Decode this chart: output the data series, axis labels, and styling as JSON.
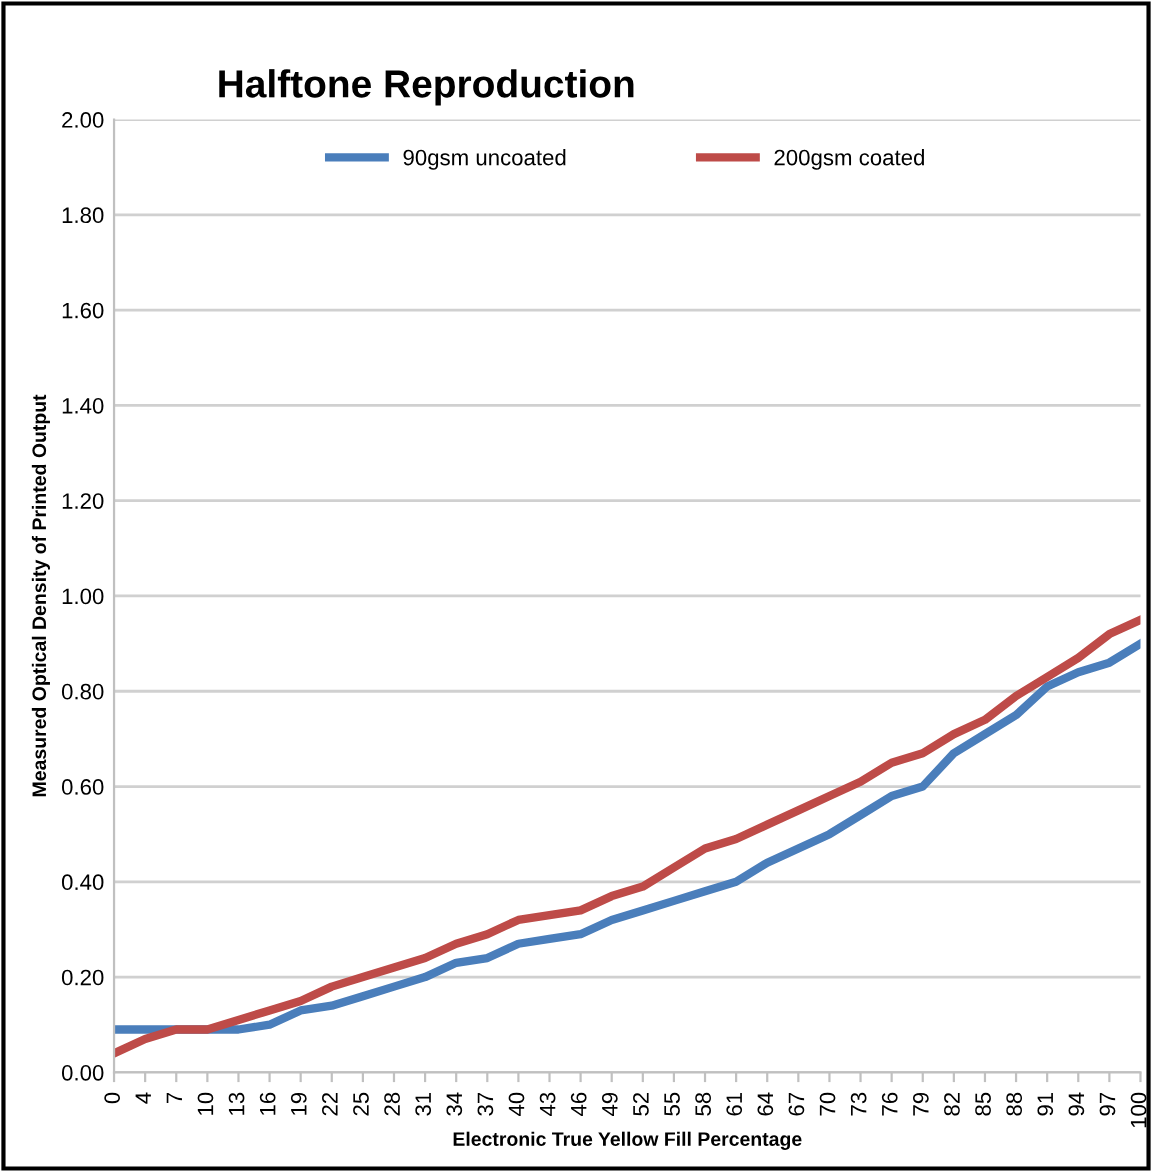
{
  "chart_data": {
    "type": "line",
    "title": "Halftone Reproduction",
    "xlabel": "Electronic True Yellow Fill Percentage",
    "ylabel": "Measured Optical Density of Printed Output",
    "categories": [
      "0",
      "4",
      "7",
      "10",
      "13",
      "16",
      "19",
      "22",
      "25",
      "28",
      "31",
      "34",
      "37",
      "40",
      "43",
      "46",
      "49",
      "52",
      "55",
      "58",
      "61",
      "64",
      "67",
      "70",
      "73",
      "76",
      "79",
      "82",
      "85",
      "88",
      "91",
      "94",
      "97",
      "100"
    ],
    "series": [
      {
        "name": "90gsm uncoated",
        "color": "#4a7ebb",
        "values": [
          0.09,
          0.09,
          0.09,
          0.09,
          0.09,
          0.1,
          0.13,
          0.14,
          0.16,
          0.18,
          0.2,
          0.23,
          0.24,
          0.27,
          0.28,
          0.29,
          0.32,
          0.34,
          0.36,
          0.38,
          0.4,
          0.44,
          0.47,
          0.5,
          0.54,
          0.58,
          0.6,
          0.67,
          0.71,
          0.75,
          0.81,
          0.84,
          0.86,
          0.9
        ]
      },
      {
        "name": "200gsm coated",
        "color": "#be4b48",
        "values": [
          0.04,
          0.07,
          0.09,
          0.09,
          0.11,
          0.13,
          0.15,
          0.18,
          0.2,
          0.22,
          0.24,
          0.27,
          0.29,
          0.32,
          0.33,
          0.34,
          0.37,
          0.39,
          0.43,
          0.47,
          0.49,
          0.52,
          0.55,
          0.58,
          0.61,
          0.65,
          0.67,
          0.71,
          0.74,
          0.79,
          0.83,
          0.87,
          0.92,
          0.95
        ]
      }
    ],
    "ylim": [
      0,
      2
    ],
    "yticks": [
      {
        "value": 0,
        "label": "0.00"
      },
      {
        "value": 0.2,
        "label": "0.20"
      },
      {
        "value": 0.4,
        "label": "0.40"
      },
      {
        "value": 0.6,
        "label": "0.60"
      },
      {
        "value": 0.8,
        "label": "0.80"
      },
      {
        "value": 1.0,
        "label": "1.00"
      },
      {
        "value": 1.2,
        "label": "1.20"
      },
      {
        "value": 1.4,
        "label": "1.40"
      },
      {
        "value": 1.6,
        "label": "1.60"
      },
      {
        "value": 1.8,
        "label": "1.80"
      },
      {
        "value": 2.0,
        "label": "2.00"
      }
    ],
    "grid": "y",
    "legend": "top",
    "marker": "none",
    "line_style": "solid"
  }
}
